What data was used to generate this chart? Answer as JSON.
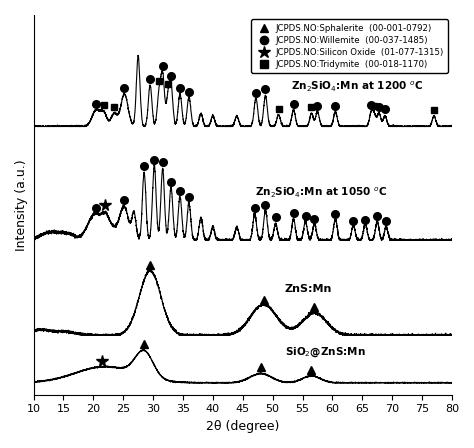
{
  "xlabel": "2θ (degree)",
  "ylabel": "Intensity (a.u.)",
  "xlim": [
    10,
    80
  ],
  "legend_entries": [
    {
      "marker": "^",
      "label": "JCPDS.NO:Sphalerite  (00-001-0792)"
    },
    {
      "marker": "o",
      "label": "JCPDS.NO:Willemite  (00-037-1485)"
    },
    {
      "marker": "*",
      "label": "JCPDS.NO:Silicon Oxide  (01-077-1315)"
    },
    {
      "marker": "s",
      "label": "JCPDS.NO:Tridymite  (00-018-1170)"
    }
  ],
  "willemite_1200": [
    20.5,
    25.2,
    29.5,
    31.6,
    33.0,
    34.5,
    36.0,
    47.2,
    48.8,
    53.5,
    57.5,
    60.5,
    66.5,
    67.8,
    68.8
  ],
  "tridymite_1200": [
    21.8,
    23.5,
    31.0,
    32.5,
    51.0,
    56.5,
    67.0,
    77.0
  ],
  "willemite_1050": [
    20.5,
    25.2,
    28.5,
    30.2,
    31.6,
    33.0,
    34.5,
    36.0,
    47.0,
    48.8,
    50.5,
    53.5,
    55.5,
    57.0,
    60.5,
    63.5,
    65.5,
    67.5,
    69.0
  ],
  "silicon_oxide_1050": [
    22.0
  ],
  "sphalerite_zns": [
    29.5,
    48.5,
    57.0
  ],
  "sphalerite_sio2zns": [
    28.5,
    48.0,
    56.5
  ],
  "silicon_oxide_sio2zns": [
    21.5
  ]
}
